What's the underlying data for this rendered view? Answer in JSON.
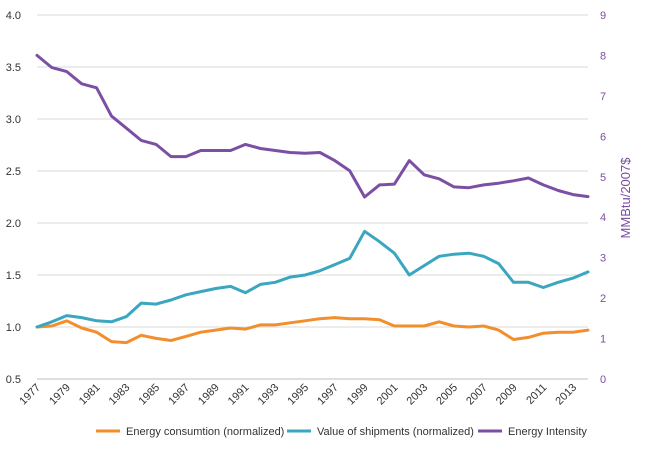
{
  "chart_data": {
    "type": "line",
    "x": [
      1977,
      1978,
      1979,
      1980,
      1981,
      1982,
      1983,
      1984,
      1985,
      1986,
      1987,
      1988,
      1989,
      1990,
      1991,
      1992,
      1993,
      1994,
      1995,
      1996,
      1997,
      1998,
      1999,
      2000,
      2001,
      2002,
      2003,
      2004,
      2005,
      2006,
      2007,
      2008,
      2009,
      2010,
      2011,
      2012,
      2013,
      2014
    ],
    "x_tick_labels": [
      "1977",
      "1979",
      "1981",
      "1983",
      "1985",
      "1987",
      "1989",
      "1991",
      "1993",
      "1995",
      "1997",
      "1999",
      "2001",
      "2003",
      "2005",
      "2007",
      "2009",
      "2011",
      "2013"
    ],
    "ylim_left": [
      0.5,
      4.0
    ],
    "y_ticks_left": [
      "0.5",
      "1.0",
      "1.5",
      "2.0",
      "2.5",
      "3.0",
      "3.5",
      "4.0"
    ],
    "ylim_right": [
      0,
      9
    ],
    "y_ticks_right": [
      "0",
      "1",
      "2",
      "3",
      "4",
      "5",
      "6",
      "7",
      "8",
      "9"
    ],
    "ylabel_right": "MMBtu/2007$",
    "grid": "horizontal",
    "legend_position": "bottom",
    "series": [
      {
        "name": "Energy consumtion (normalized)",
        "axis": "left",
        "color": "#f28e2b",
        "values": [
          1.0,
          1.01,
          1.06,
          0.99,
          0.95,
          0.86,
          0.85,
          0.92,
          0.89,
          0.87,
          0.91,
          0.95,
          0.97,
          0.99,
          0.98,
          1.02,
          1.02,
          1.04,
          1.06,
          1.08,
          1.09,
          1.08,
          1.08,
          1.07,
          1.01,
          1.01,
          1.01,
          1.05,
          1.01,
          1.0,
          1.01,
          0.97,
          0.88,
          0.9,
          0.94,
          0.95,
          0.95,
          0.97
        ]
      },
      {
        "name": "Value of shipments (normalized)",
        "axis": "left",
        "color": "#3aa6c0",
        "values": [
          1.0,
          1.05,
          1.11,
          1.09,
          1.06,
          1.05,
          1.1,
          1.23,
          1.22,
          1.26,
          1.31,
          1.34,
          1.37,
          1.39,
          1.33,
          1.41,
          1.43,
          1.48,
          1.5,
          1.54,
          1.6,
          1.66,
          1.92,
          1.82,
          1.71,
          1.5,
          1.59,
          1.68,
          1.7,
          1.71,
          1.68,
          1.61,
          1.43,
          1.43,
          1.38,
          1.43,
          1.47,
          1.53
        ]
      },
      {
        "name": "Energy Intensity",
        "axis": "right",
        "color": "#7b4fa3",
        "values": [
          8.0,
          7.7,
          7.6,
          7.3,
          7.2,
          6.5,
          6.2,
          5.9,
          5.8,
          5.5,
          5.5,
          5.65,
          5.65,
          5.65,
          5.8,
          5.7,
          5.65,
          5.6,
          5.58,
          5.6,
          5.4,
          5.15,
          4.5,
          4.8,
          4.82,
          5.4,
          5.05,
          4.95,
          4.75,
          4.73,
          4.8,
          4.84,
          4.9,
          4.97,
          4.8,
          4.66,
          4.56,
          4.51
        ]
      }
    ]
  }
}
